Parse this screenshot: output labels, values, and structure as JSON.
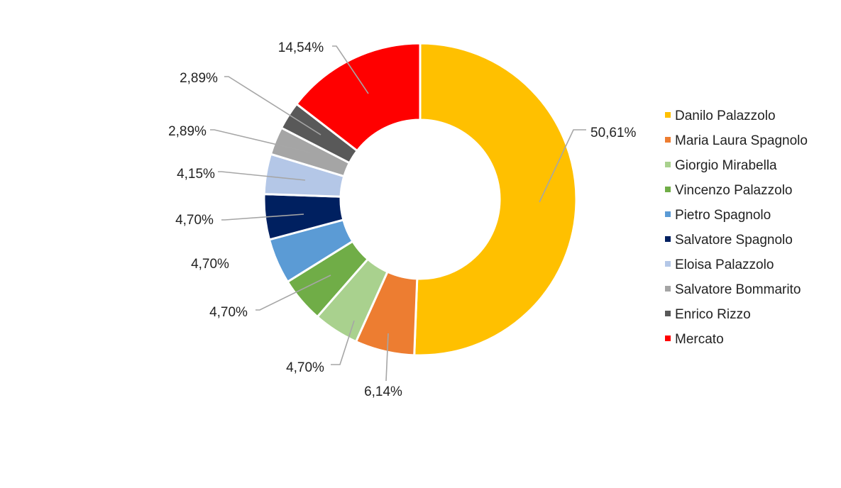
{
  "chart_data": {
    "type": "pie",
    "variant": "donut",
    "legend_position": "right",
    "slices": [
      {
        "name": "Danilo Palazzolo",
        "value": 50.61,
        "label": "50,61%",
        "color": "#FFC000"
      },
      {
        "name": "Maria Laura Spagnolo",
        "value": 6.14,
        "label": "6,14%",
        "color": "#ED7D31"
      },
      {
        "name": "Giorgio Mirabella",
        "value": 4.7,
        "label": "4,70%",
        "color": "#A9D18E"
      },
      {
        "name": "Vincenzo Palazzolo",
        "value": 4.7,
        "label": "4,70%",
        "color": "#70AD47"
      },
      {
        "name": "Pietro Spagnolo",
        "value": 4.7,
        "label": "4,70%",
        "color": "#5B9BD5"
      },
      {
        "name": "Salvatore Spagnolo",
        "value": 4.7,
        "label": "4,70%",
        "color": "#002060"
      },
      {
        "name": "Eloisa Palazzolo",
        "value": 4.15,
        "label": "4,15%",
        "color": "#B4C7E7"
      },
      {
        "name": "Salvatore Bommarito",
        "value": 2.89,
        "label": "2,89%",
        "color": "#A5A5A5"
      },
      {
        "name": "Enrico Rizzo",
        "value": 2.89,
        "label": "2,89%",
        "color": "#595959"
      },
      {
        "name": "Mercato",
        "value": 14.54,
        "label": "14,54%",
        "color": "#FF0000"
      }
    ]
  }
}
